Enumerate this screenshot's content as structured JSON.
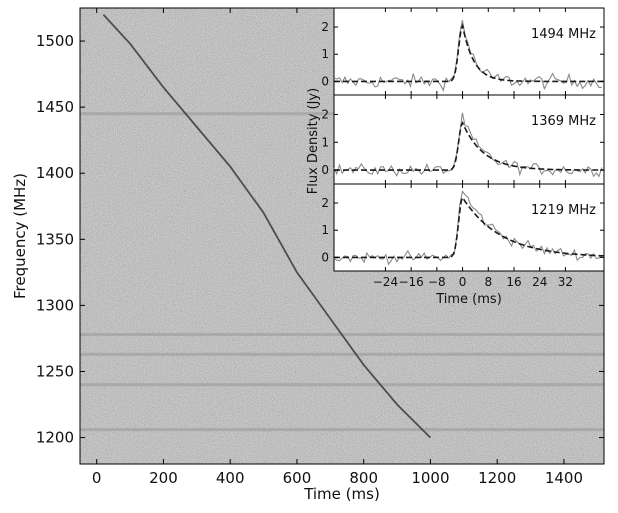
{
  "chart_data": [
    {
      "type": "heatmap",
      "title": "",
      "xlabel": "Time (ms)",
      "ylabel": "Frequency (MHz)",
      "xlim": [
        -50,
        1520
      ],
      "ylim": [
        1180,
        1525
      ],
      "xticks": [
        0,
        200,
        400,
        600,
        800,
        1000,
        1200,
        1400
      ],
      "yticks": [
        1200,
        1250,
        1300,
        1350,
        1400,
        1450,
        1500
      ],
      "grid": false,
      "colormap": "gray",
      "background_color": "#8f8f8f",
      "dispersion_sweep": {
        "x": [
          20,
          100,
          200,
          300,
          400,
          500,
          600,
          700,
          800,
          900,
          1000
        ],
        "y": [
          1520,
          1498,
          1465,
          1435,
          1405,
          1370,
          1325,
          1290,
          1255,
          1225,
          1200
        ]
      },
      "masked_channels_mhz": [
        1445,
        1278,
        1263,
        1240,
        1206
      ]
    },
    {
      "type": "line",
      "inset": true,
      "xlabel": "Time (ms)",
      "ylabel": "Flux Density (Jy)",
      "xlim": [
        -40,
        44
      ],
      "ylim": [
        -0.5,
        2.7
      ],
      "xticks": [
        -24,
        -16,
        -8,
        0,
        8,
        16,
        24,
        32
      ],
      "xtick_labels": [
        "−24",
        "−16",
        "−8",
        "0",
        "8",
        "16",
        "24",
        "32"
      ],
      "yticks": [
        0,
        1,
        2
      ],
      "legend": "none",
      "panels": [
        {
          "label": "1494 MHz",
          "peak_jy": 2.3,
          "model_peak_jy": 2.05,
          "model_tau_ms": 3.5,
          "noise_sigma_jy": 0.18
        },
        {
          "label": "1369 MHz",
          "peak_jy": 1.85,
          "model_peak_jy": 1.7,
          "model_tau_ms": 6.5,
          "noise_sigma_jy": 0.15
        },
        {
          "label": "1219 MHz",
          "peak_jy": 2.45,
          "model_peak_jy": 2.2,
          "model_tau_ms": 12.0,
          "noise_sigma_jy": 0.14
        }
      ],
      "colors": {
        "observed": "#8a8a8a",
        "model": "#1a1a1a"
      }
    }
  ]
}
